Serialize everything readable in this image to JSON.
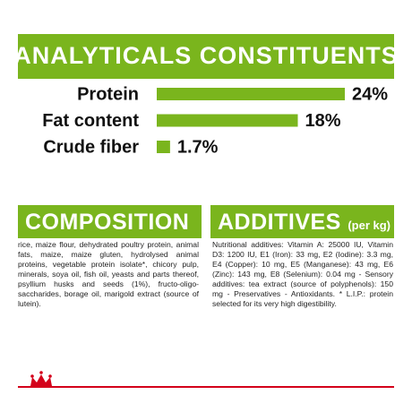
{
  "chart_data": {
    "type": "hbar",
    "title": "ANALYTICALS CONSTITUENTS",
    "categories": [
      "Protein",
      "Fat content",
      "Crude fiber"
    ],
    "values": [
      24,
      18,
      1.7
    ],
    "value_labels": [
      "24%",
      "18%",
      "1.7%"
    ],
    "color": "#7ab51d"
  },
  "composition": {
    "title": "COMPOSITION",
    "text": "rice, maize flour, dehydrated poultry protein, animal fats, maize, maize gluten, hydrolysed animal proteins, vegetable protein isolate*, chicory pulp, minerals, soya oil, fish oil, yeasts and parts thereof, psyllium husks and seeds (1%), fructo-oligo-saccharides, borage oil, marigold extract (source of lutein)."
  },
  "additives": {
    "title": "ADDITIVES",
    "unit": "(per kg)",
    "text": "Nutritional additives: Vitamin A: 25000 IU, Vitamin D3: 1200 IU, E1 (Iron): 33 mg, E2 (Iodine): 3.3 mg, E4 (Copper): 10 mg, E5 (Manganese): 43 mg, E6 (Zinc): 143 mg, E8 (Selenium): 0.04 mg - Sensory additives: tea extract (source of polyphenols): 150 mg - Preservatives - Antioxidants. * L.I.P.: protein selected for its very high digestibility."
  }
}
